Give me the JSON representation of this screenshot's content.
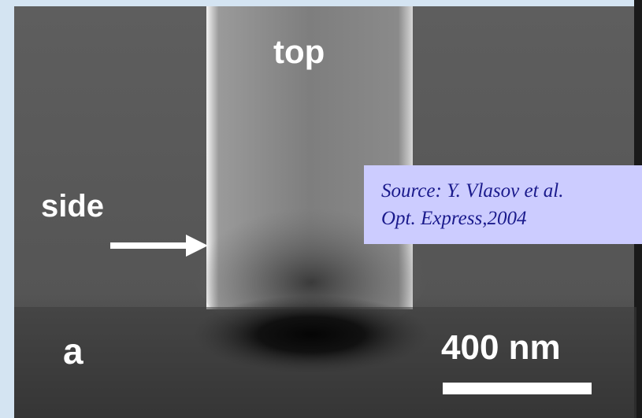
{
  "labels": {
    "top": "top",
    "side": "side",
    "panel": "a",
    "scale": "400 nm"
  },
  "source": {
    "line1": "Source: Y. Vlasov et al.",
    "line2": "Opt. Express,2004"
  }
}
